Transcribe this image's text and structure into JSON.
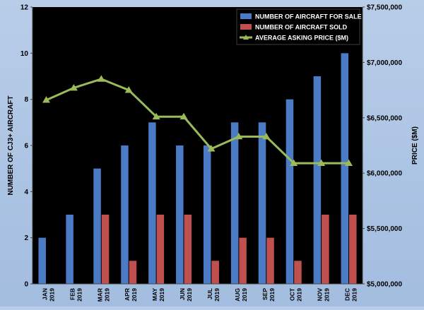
{
  "chart_data": {
    "type": "bar",
    "categories": [
      [
        "JAN",
        "2019"
      ],
      [
        "FEB",
        "2019"
      ],
      [
        "MAR",
        "2019"
      ],
      [
        "APR",
        "2019"
      ],
      [
        "MAY",
        "2019"
      ],
      [
        "JUN",
        "2019"
      ],
      [
        "JUL",
        "2019"
      ],
      [
        "AUG",
        "2019"
      ],
      [
        "SEP",
        "2019"
      ],
      [
        "OCT",
        "2019"
      ],
      [
        "NOV",
        "2019"
      ],
      [
        "DEC",
        "2019"
      ]
    ],
    "series": [
      {
        "name": "NUMBER OF AIRCRAFT FOR SALE",
        "type": "bar",
        "axis": "left",
        "color": "#4a7bc4",
        "values": [
          2,
          3,
          5,
          6,
          7,
          6,
          6,
          7,
          7,
          8,
          9,
          10
        ]
      },
      {
        "name": "NUMBER OF AIRCRAFT SOLD",
        "type": "bar",
        "axis": "left",
        "color": "#c0504d",
        "values": [
          0,
          0,
          3,
          1,
          3,
          3,
          1,
          2,
          2,
          1,
          3,
          3
        ]
      },
      {
        "name": "AVERAGE ASKING PRICE ($M)",
        "type": "line",
        "axis": "right",
        "color": "#9bbb59",
        "values": [
          6660000,
          6770000,
          6850000,
          6750000,
          6510000,
          6510000,
          6220000,
          6330000,
          6330000,
          6090000,
          6090000,
          6090000
        ]
      }
    ],
    "ylabel": "NUMBER OF CJ3+ AIRCRAFT",
    "y2label": "PRICE ($M)",
    "ylim": [
      0,
      12
    ],
    "y_ticks": [
      0,
      2,
      4,
      6,
      8,
      10,
      12
    ],
    "y_tick_labels": [
      "0",
      "2",
      "4",
      "6",
      "8",
      "10",
      "12"
    ],
    "y2lim": [
      5000000,
      7500000
    ],
    "y2_ticks": [
      5000000,
      5500000,
      6000000,
      6500000,
      7000000,
      7500000
    ],
    "y2_tick_labels": [
      "$5,000,000",
      "$5,500,000",
      "$6,000,000",
      "$6,500,000",
      "$7,000,000",
      "$7,500,000"
    ],
    "legend_position": "top-right",
    "plot_background": "#000000",
    "grid": false
  }
}
